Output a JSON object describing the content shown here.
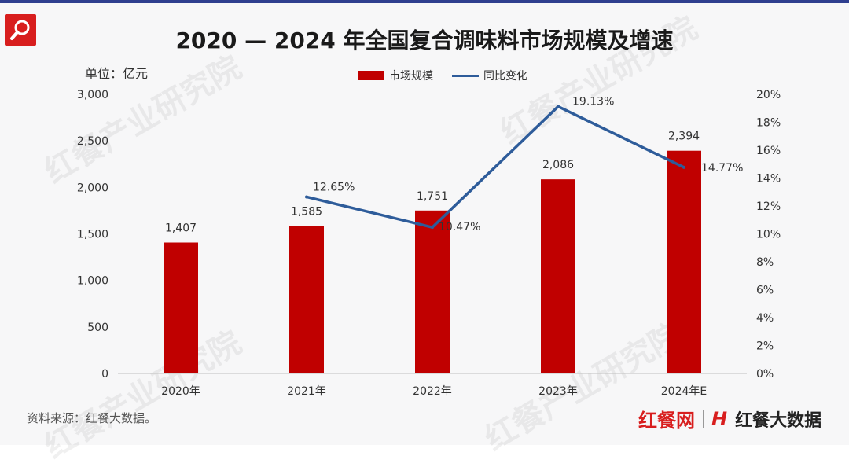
{
  "title": "2020 — 2024 年全国复合调味料市场规模及增速",
  "unit_label": "单位：亿元",
  "legend": {
    "bar_label": "市场规模",
    "line_label": "同比变化"
  },
  "source": "资料来源：红餐大数据。",
  "brand": {
    "left": "红餐网",
    "right": "红餐大数据",
    "mark": "H"
  },
  "watermark": "红餐产业研究院",
  "colors": {
    "bar": "#c00000",
    "line": "#2e5c9a"
  },
  "chart_data": {
    "type": "bar",
    "categories": [
      "2020年",
      "2021年",
      "2022年",
      "2023年",
      "2024年E"
    ],
    "series": [
      {
        "name": "市场规模",
        "type": "bar",
        "axis": "left",
        "values": [
          1407,
          1585,
          1751,
          2086,
          2394
        ],
        "labels": [
          "1,407",
          "1,585",
          "1,751",
          "2,086",
          "2,394"
        ]
      },
      {
        "name": "同比变化",
        "type": "line",
        "axis": "right",
        "values": [
          null,
          12.65,
          10.47,
          19.13,
          14.77
        ],
        "labels": [
          "",
          "12.65%",
          "10.47%",
          "19.13%",
          "14.77%"
        ]
      }
    ],
    "ylim": [
      0,
      3000
    ],
    "y_ticks": [
      "0",
      "500",
      "1,000",
      "1,500",
      "2,000",
      "2,500",
      "3,000"
    ],
    "y2lim": [
      0,
      20
    ],
    "y2_ticks": [
      "0%",
      "2%",
      "4%",
      "6%",
      "8%",
      "10%",
      "12%",
      "14%",
      "16%",
      "18%",
      "20%"
    ],
    "grid": false,
    "legend_position": "top-center"
  }
}
